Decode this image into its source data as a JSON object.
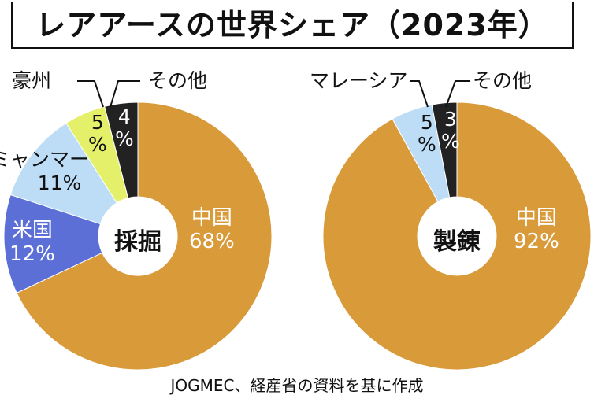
{
  "title": "レアアースの世界シェア（2023年）",
  "source": "JOGMEC、経産省の資料を基に作成",
  "chart_data": [
    {
      "type": "pie",
      "center_label": "採掘",
      "unit": "%",
      "slices": [
        {
          "label": "中国",
          "value": 68,
          "color": "#D99A3A"
        },
        {
          "label": "米国",
          "value": 12,
          "color": "#5B6FD6"
        },
        {
          "label": "ミャンマー",
          "value": 11,
          "color": "#BCDDF5"
        },
        {
          "label": "豪州",
          "value": 5,
          "color": "#E4F06A"
        },
        {
          "label": "その他",
          "value": 4,
          "color": "#222222"
        }
      ]
    },
    {
      "type": "pie",
      "center_label": "製錬",
      "unit": "%",
      "slices": [
        {
          "label": "中国",
          "value": 92,
          "color": "#D99A3A"
        },
        {
          "label": "マレーシア",
          "value": 5,
          "color": "#BCDDF5"
        },
        {
          "label": "その他",
          "value": 3,
          "color": "#222222"
        }
      ]
    }
  ]
}
